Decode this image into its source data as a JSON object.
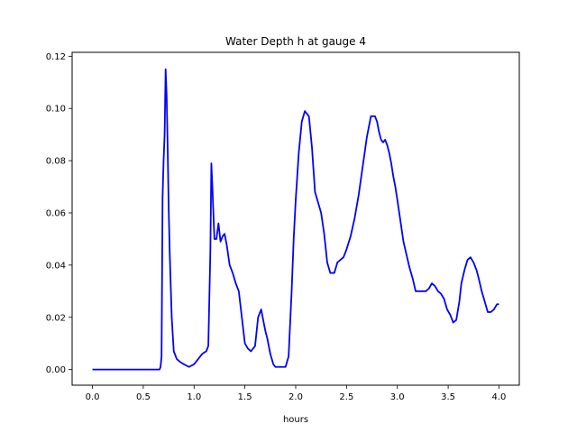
{
  "chart_data": {
    "type": "line",
    "title": "Water Depth h at gauge 4",
    "xlabel": "hours",
    "ylabel": "",
    "xlim": [
      -0.2,
      4.2
    ],
    "ylim": [
      -0.006,
      0.1215
    ],
    "x_ticks": [
      0.0,
      0.5,
      1.0,
      1.5,
      2.0,
      2.5,
      3.0,
      3.5,
      4.0
    ],
    "x_tick_labels": [
      "0.0",
      "0.5",
      "1.0",
      "1.5",
      "2.0",
      "2.5",
      "3.0",
      "3.5",
      "4.0"
    ],
    "y_ticks": [
      0.0,
      0.02,
      0.04,
      0.06,
      0.08,
      0.1,
      0.12
    ],
    "y_tick_labels": [
      "0.00",
      "0.02",
      "0.04",
      "0.06",
      "0.08",
      "0.10",
      "0.12"
    ],
    "grid": false,
    "legend": "none",
    "series": [
      {
        "color": "#0000ff",
        "x": [
          0.0,
          0.1,
          0.2,
          0.3,
          0.4,
          0.5,
          0.6,
          0.66,
          0.67,
          0.68,
          0.69,
          0.7,
          0.71,
          0.72,
          0.73,
          0.74,
          0.75,
          0.76,
          0.78,
          0.8,
          0.83,
          0.86,
          0.9,
          0.95,
          1.0,
          1.04,
          1.08,
          1.12,
          1.14,
          1.16,
          1.17,
          1.18,
          1.2,
          1.22,
          1.24,
          1.26,
          1.28,
          1.3,
          1.32,
          1.35,
          1.38,
          1.41,
          1.44,
          1.47,
          1.5,
          1.53,
          1.56,
          1.6,
          1.63,
          1.66,
          1.7,
          1.72,
          1.75,
          1.78,
          1.8,
          1.83,
          1.86,
          1.9,
          1.93,
          1.96,
          1.98,
          2.0,
          2.03,
          2.06,
          2.09,
          2.13,
          2.16,
          2.19,
          2.22,
          2.25,
          2.28,
          2.31,
          2.34,
          2.38,
          2.41,
          2.44,
          2.47,
          2.5,
          2.54,
          2.58,
          2.62,
          2.66,
          2.7,
          2.74,
          2.78,
          2.8,
          2.82,
          2.84,
          2.86,
          2.88,
          2.9,
          2.92,
          2.94,
          2.96,
          2.98,
          3.0,
          3.03,
          3.06,
          3.09,
          3.12,
          3.15,
          3.18,
          3.2,
          3.22,
          3.25,
          3.28,
          3.31,
          3.34,
          3.37,
          3.4,
          3.43,
          3.46,
          3.49,
          3.52,
          3.55,
          3.58,
          3.61,
          3.63,
          3.66,
          3.69,
          3.72,
          3.75,
          3.78,
          3.8,
          3.83,
          3.86,
          3.89,
          3.92,
          3.95,
          3.98,
          4.0
        ],
        "values": [
          0.0,
          0.0,
          0.0,
          0.0,
          0.0,
          0.0,
          0.0,
          0.0,
          0.001,
          0.005,
          0.066,
          0.08,
          0.09,
          0.115,
          0.105,
          0.085,
          0.062,
          0.045,
          0.02,
          0.007,
          0.004,
          0.003,
          0.002,
          0.001,
          0.002,
          0.004,
          0.006,
          0.007,
          0.009,
          0.045,
          0.079,
          0.07,
          0.05,
          0.05,
          0.056,
          0.049,
          0.051,
          0.052,
          0.048,
          0.04,
          0.037,
          0.033,
          0.03,
          0.02,
          0.01,
          0.008,
          0.007,
          0.009,
          0.02,
          0.023,
          0.015,
          0.012,
          0.006,
          0.002,
          0.001,
          0.001,
          0.001,
          0.001,
          0.005,
          0.03,
          0.05,
          0.065,
          0.083,
          0.095,
          0.099,
          0.097,
          0.085,
          0.068,
          0.064,
          0.06,
          0.052,
          0.041,
          0.037,
          0.037,
          0.041,
          0.042,
          0.043,
          0.046,
          0.051,
          0.058,
          0.067,
          0.078,
          0.089,
          0.097,
          0.097,
          0.095,
          0.091,
          0.088,
          0.087,
          0.088,
          0.086,
          0.083,
          0.079,
          0.074,
          0.07,
          0.065,
          0.057,
          0.049,
          0.044,
          0.039,
          0.035,
          0.03,
          0.03,
          0.03,
          0.03,
          0.03,
          0.031,
          0.033,
          0.032,
          0.03,
          0.029,
          0.027,
          0.023,
          0.021,
          0.018,
          0.019,
          0.026,
          0.033,
          0.038,
          0.042,
          0.043,
          0.041,
          0.038,
          0.035,
          0.03,
          0.026,
          0.022,
          0.022,
          0.023,
          0.025,
          0.025
        ]
      }
    ]
  }
}
